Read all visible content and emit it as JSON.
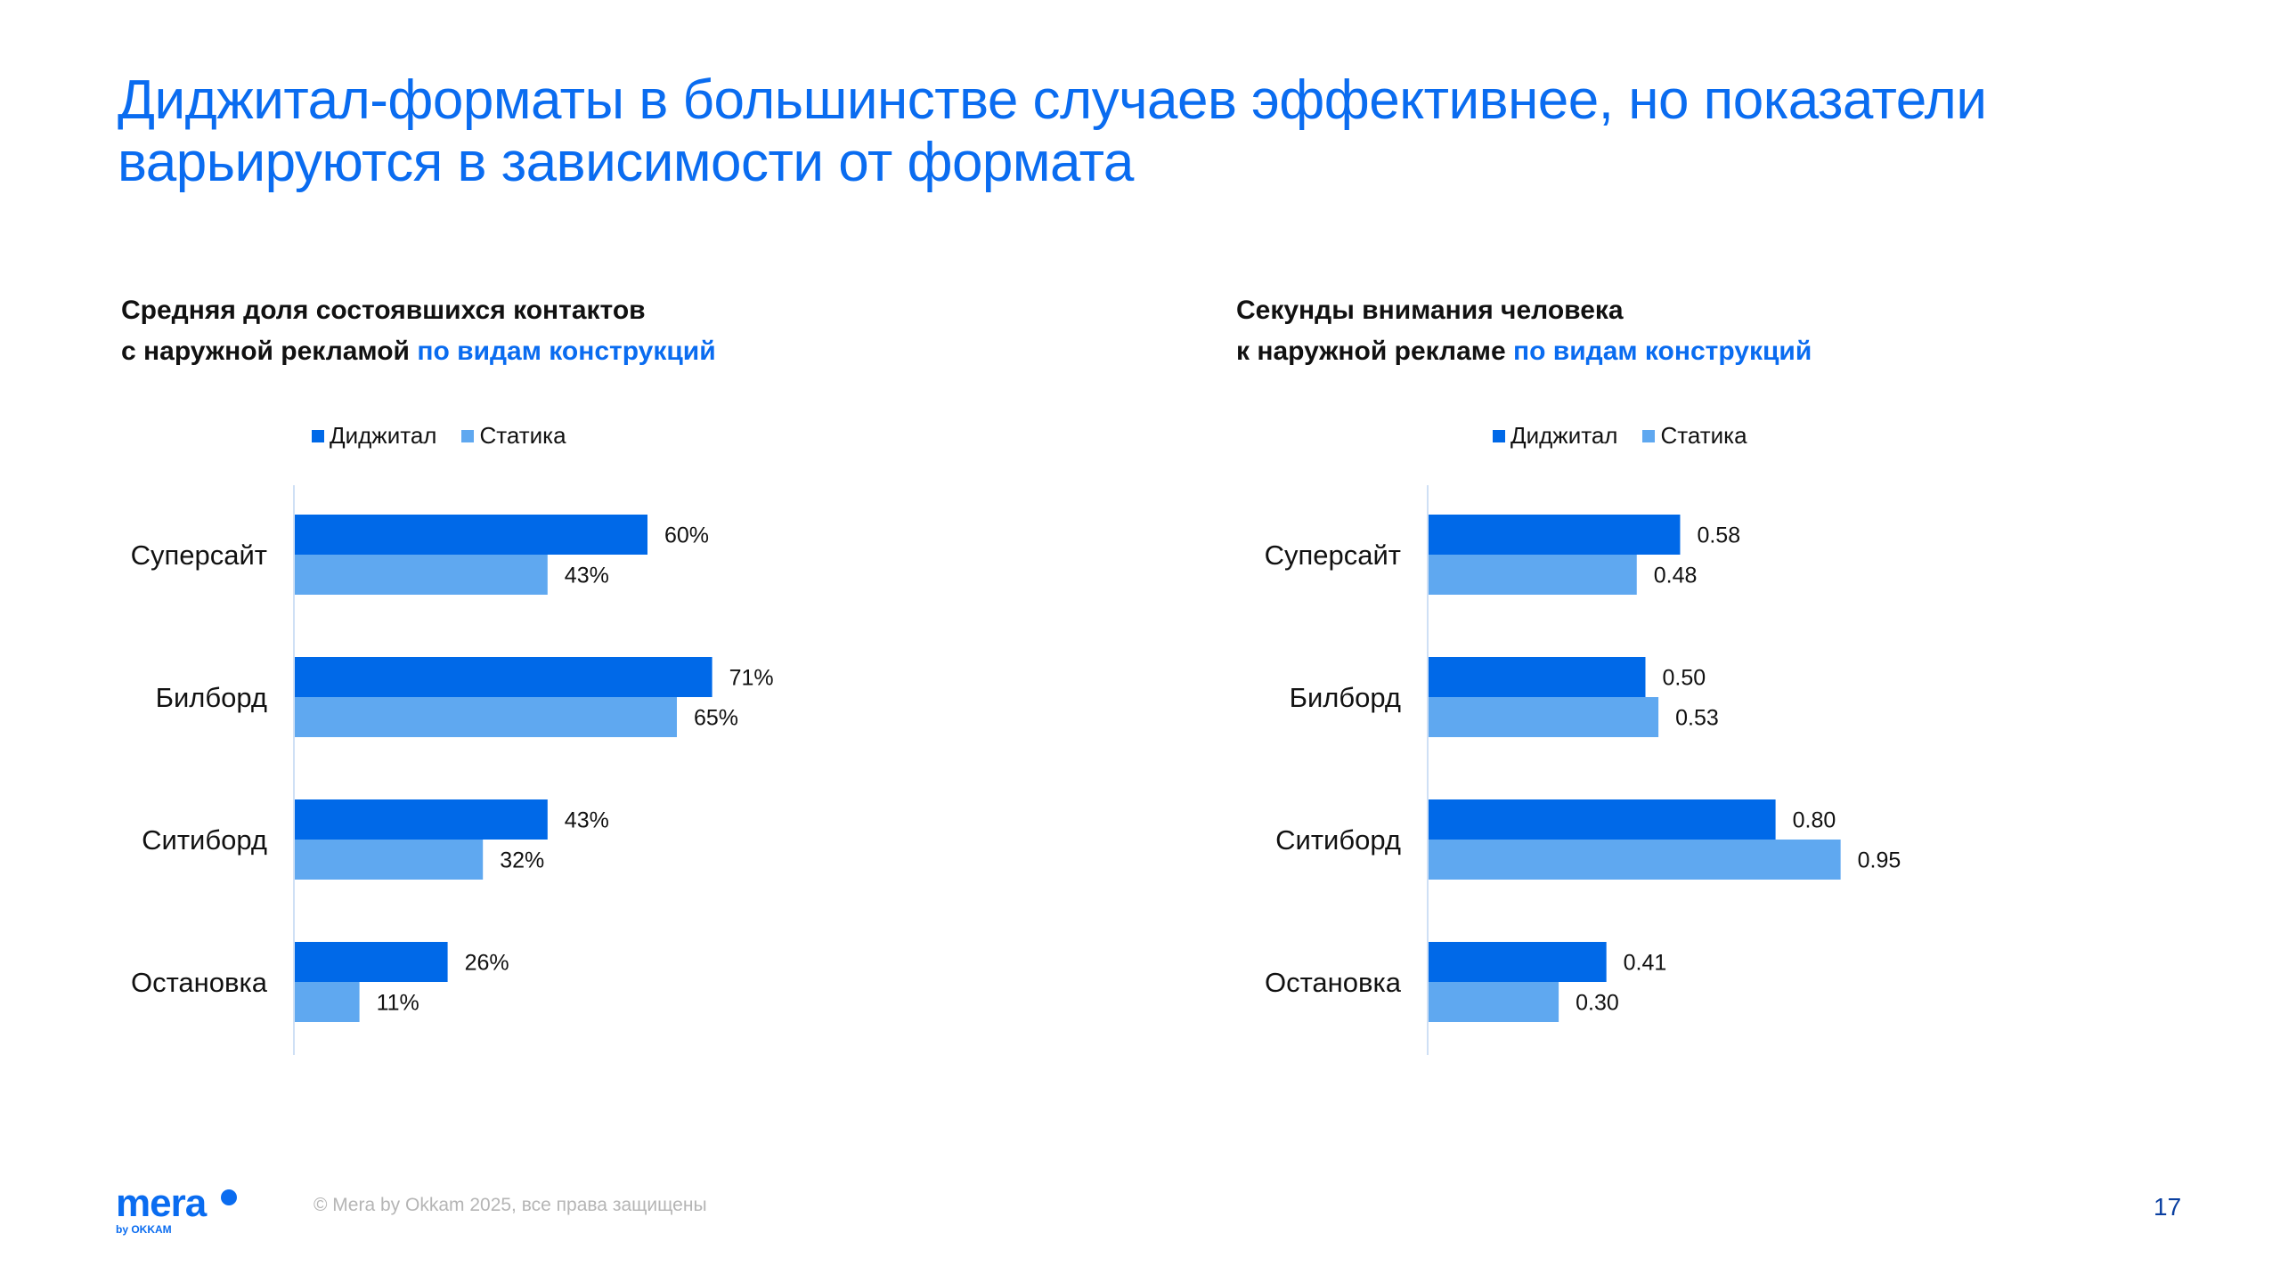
{
  "title": "Диджитал-форматы в большинстве случаев эффективнее, но показатели варьируются в зависимости от формата",
  "colors": {
    "digital": "#0069E8",
    "static": "#5FA8F0",
    "accent": "#0A6CF0"
  },
  "chart_data": [
    {
      "type": "bar",
      "orientation": "horizontal",
      "title_line1": "Средняя доля состоявшихся контактов",
      "title_line2": "с наружной рекламой",
      "title_highlight": "по видам конструкций",
      "categories": [
        "Суперсайт",
        "Билборд",
        "Ситиборд",
        "Остановка"
      ],
      "series": [
        {
          "name": "Диджитал",
          "values": [
            60,
            71,
            43,
            26
          ],
          "labels": [
            "60%",
            "71%",
            "43%",
            "26%"
          ]
        },
        {
          "name": "Статика",
          "values": [
            43,
            65,
            32,
            11
          ],
          "labels": [
            "43%",
            "65%",
            "32%",
            "11%"
          ]
        }
      ],
      "unit": "%",
      "xlim": [
        0,
        100
      ]
    },
    {
      "type": "bar",
      "orientation": "horizontal",
      "title_line1": "Секунды внимания человека",
      "title_line2": "к наружной рекламе",
      "title_highlight": "по видам конструкций",
      "categories": [
        "Суперсайт",
        "Билборд",
        "Ситиборд",
        "Остановка"
      ],
      "series": [
        {
          "name": "Диджитал",
          "values": [
            0.58,
            0.5,
            0.8,
            0.41
          ],
          "labels": [
            "0.58",
            "0.50",
            "0.80",
            "0.41"
          ]
        },
        {
          "name": "Статика",
          "values": [
            0.48,
            0.53,
            0.95,
            0.3
          ],
          "labels": [
            "0.48",
            "0.53",
            "0.95",
            "0.30"
          ]
        }
      ],
      "unit": "s",
      "xlim": [
        0,
        1.5
      ]
    }
  ],
  "footer": {
    "logo": "mera",
    "logo_sub": "by OKKAM",
    "copyright": "© Mera by Okkam 2025, все права защищены",
    "page": "17"
  }
}
